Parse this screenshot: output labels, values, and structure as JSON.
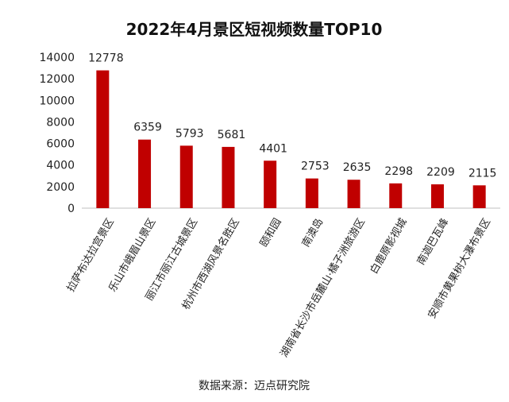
{
  "chart_data": {
    "type": "bar",
    "title": "2022年4月景区短视频数量TOP10",
    "source": "数据来源：迈点研究院",
    "categories": [
      "拉萨布达拉宫景区",
      "乐山市峨眉山景区",
      "丽江市丽江古城景区",
      "杭州市西湖风景名胜区",
      "颐和园",
      "南澳岛",
      "湖南省长沙市岳麓山·橘子洲旅游区",
      "白鹿原影视城",
      "南迦巴瓦峰",
      "安顺市黄果树大瀑布景区"
    ],
    "values": [
      12778,
      6359,
      5793,
      5681,
      4401,
      2753,
      2635,
      2298,
      2209,
      2115
    ],
    "value_labels": [
      "12778",
      "6359",
      "5793",
      "5681",
      "4401",
      "2753",
      "2635",
      "2298",
      "2209",
      "2115"
    ],
    "ylim": [
      0,
      14000
    ],
    "yticks": [
      "0",
      "2000",
      "4000",
      "6000",
      "8000",
      "10000",
      "12000",
      "14000"
    ],
    "grid": false,
    "legend": "none",
    "bar_color": "#c00000"
  }
}
